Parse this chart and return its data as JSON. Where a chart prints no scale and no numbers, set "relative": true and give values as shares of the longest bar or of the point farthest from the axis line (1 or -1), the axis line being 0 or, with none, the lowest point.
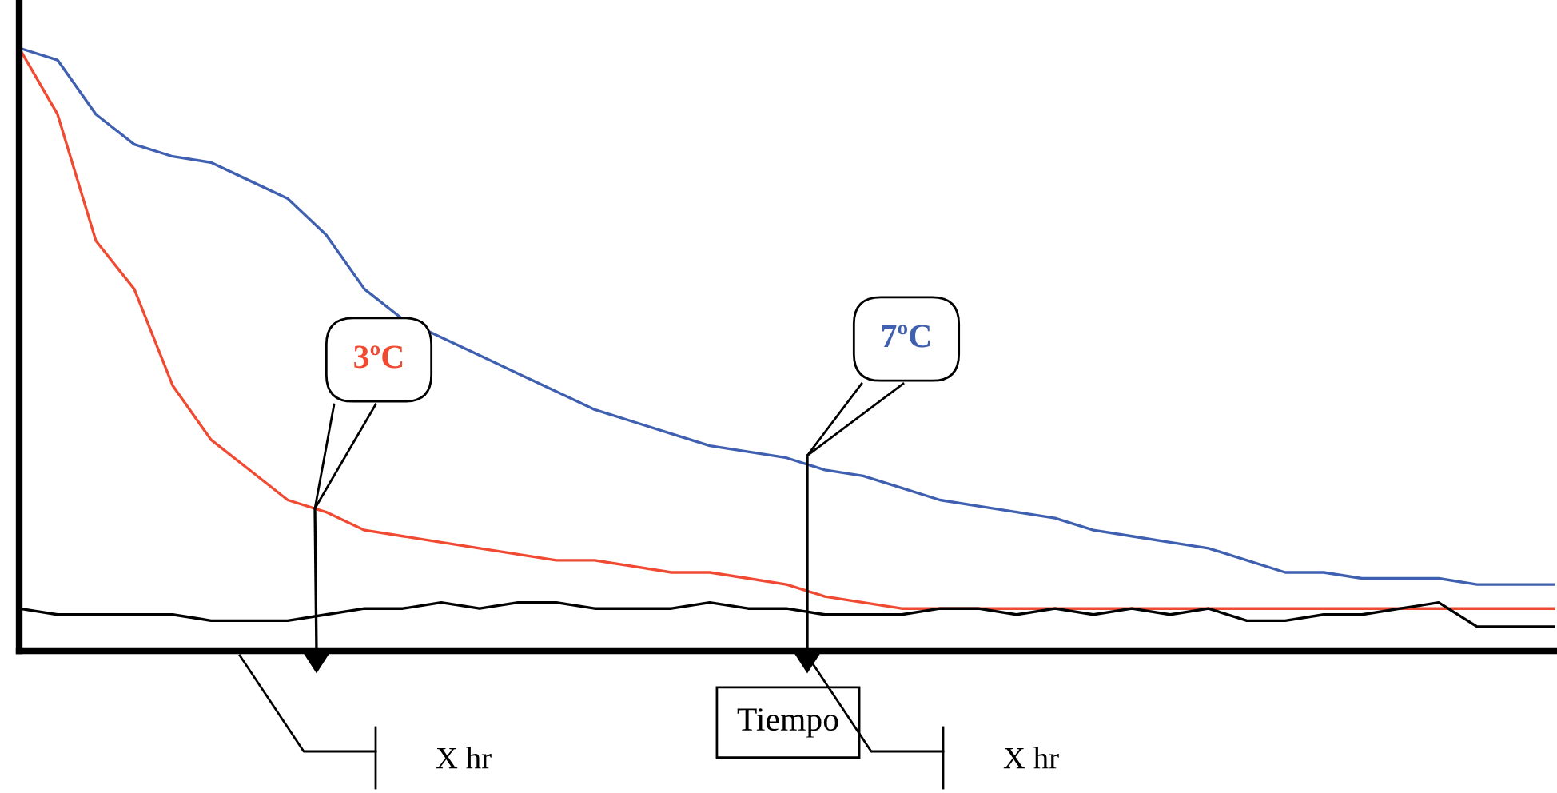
{
  "chart_data": {
    "type": "line",
    "relative": true,
    "xlabel": "Tiempo",
    "grid": false,
    "legend": false,
    "marker": "none",
    "line_style": "solid",
    "categories": [
      null,
      null,
      null,
      null,
      null,
      null,
      null,
      null,
      null,
      null,
      null,
      null,
      null,
      null,
      null,
      null,
      null,
      null,
      null,
      null,
      null,
      null,
      null,
      null,
      null,
      null,
      null,
      null,
      null,
      null,
      null,
      null,
      null,
      null,
      null,
      null,
      null,
      null,
      null,
      null,
      null
    ],
    "series": [
      {
        "color": "#3f5fb0",
        "values": [
          1.0,
          0.98,
          0.89,
          0.84,
          0.82,
          0.81,
          0.78,
          0.75,
          0.69,
          0.6,
          0.55,
          0.52,
          0.49,
          0.46,
          0.43,
          0.4,
          0.38,
          0.36,
          0.34,
          0.33,
          0.32,
          0.3,
          0.29,
          0.27,
          0.25,
          0.24,
          0.23,
          0.22,
          0.2,
          0.19,
          0.18,
          0.17,
          0.15,
          0.13,
          0.13,
          0.12,
          0.12,
          0.12,
          0.11,
          0.11,
          0.11
        ]
      },
      {
        "color": "#f04a32",
        "values": [
          1.0,
          0.89,
          0.68,
          0.6,
          0.44,
          0.35,
          0.3,
          0.25,
          0.23,
          0.2,
          0.19,
          0.18,
          0.17,
          0.16,
          0.15,
          0.15,
          0.14,
          0.13,
          0.13,
          0.12,
          0.11,
          0.09,
          0.08,
          0.07,
          0.07,
          0.07,
          0.07,
          0.07,
          0.07,
          0.07,
          0.07,
          0.07,
          0.07,
          0.07,
          0.07,
          0.07,
          0.07,
          0.07,
          0.07,
          0.07,
          0.07
        ]
      },
      {
        "color": "#000000",
        "values": [
          0.07,
          0.06,
          0.06,
          0.06,
          0.06,
          0.05,
          0.05,
          0.05,
          0.06,
          0.07,
          0.07,
          0.08,
          0.07,
          0.08,
          0.08,
          0.07,
          0.07,
          0.07,
          0.08,
          0.07,
          0.07,
          0.06,
          0.06,
          0.06,
          0.07,
          0.07,
          0.06,
          0.07,
          0.06,
          0.07,
          0.06,
          0.07,
          0.05,
          0.05,
          0.06,
          0.06,
          0.07,
          0.08,
          0.04,
          0.04,
          0.04
        ]
      }
    ],
    "annotations": [
      "3ºC",
      "7ºC",
      "X hr",
      "X hr"
    ]
  }
}
